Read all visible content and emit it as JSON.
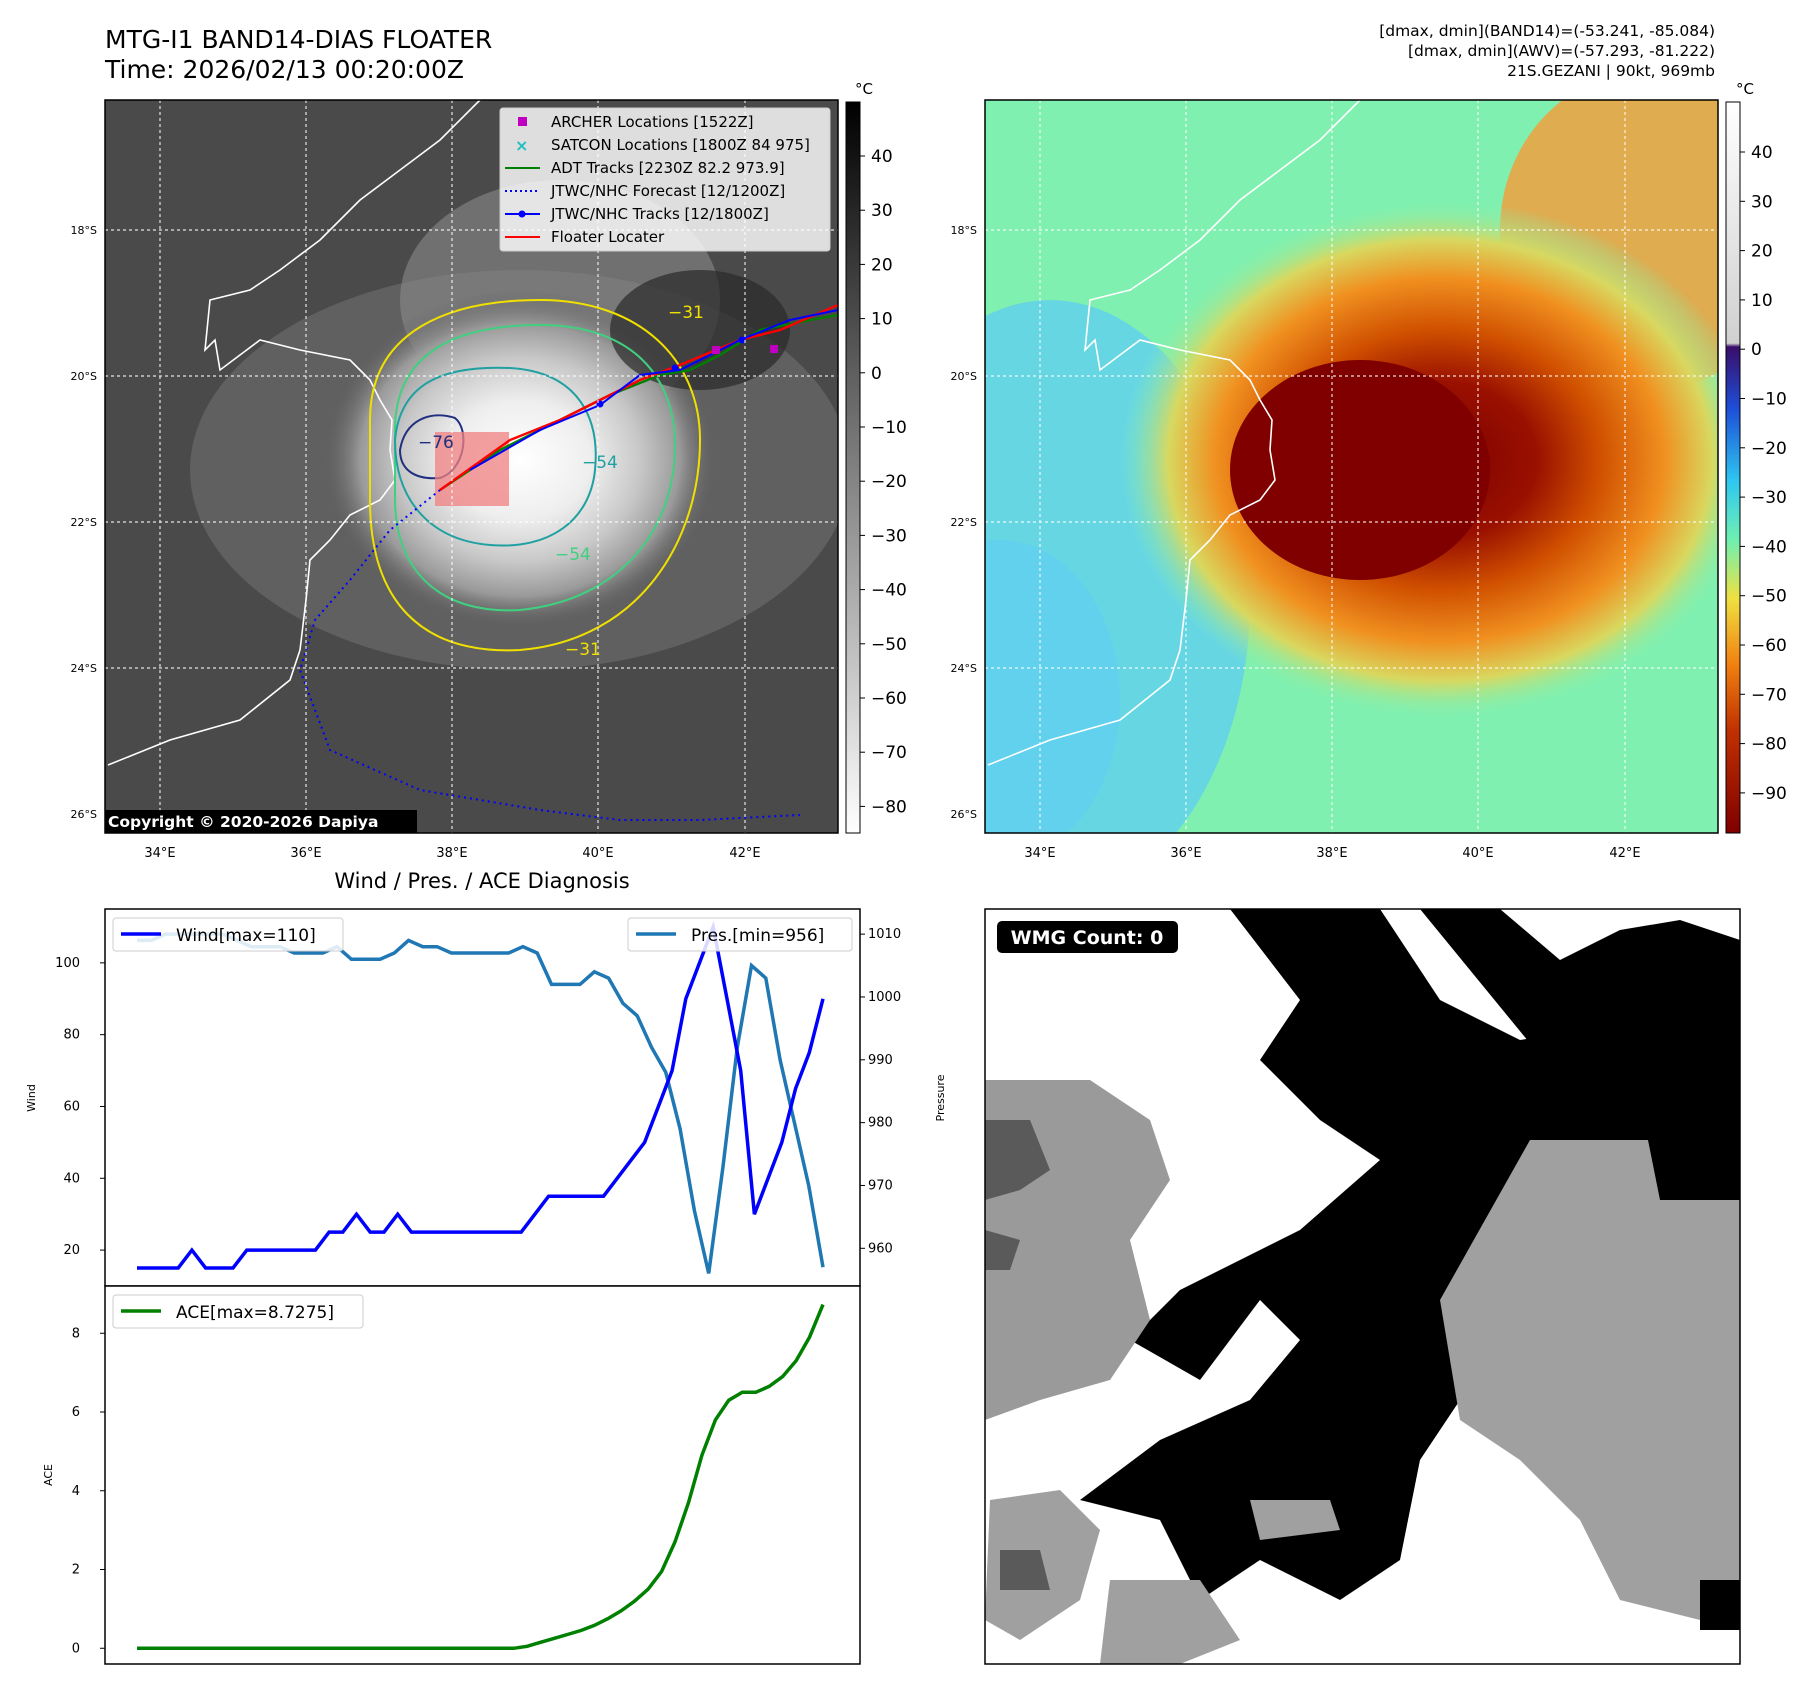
{
  "header": {
    "title_line1": "MTG-I1 BAND14-DIAS FLOATER",
    "title_line2": "Time: 2026/02/13 00:20:00Z",
    "info_line1": "[dmax, dmin](BAND14)=(-53.241, -85.084)",
    "info_line2": "[dmax, dmin](AWV)=(-57.293, -81.222)",
    "info_line3": "21S.GEZANI | 90kt, 969mb"
  },
  "map_common": {
    "lat_labels": [
      "18°S",
      "20°S",
      "22°S",
      "24°S",
      "26°S"
    ],
    "lon_labels": [
      "34°E",
      "36°E",
      "38°E",
      "40°E",
      "42°E"
    ]
  },
  "ir_panel": {
    "colorbar_unit": "°C",
    "colorbar_ticks": [
      "40",
      "30",
      "20",
      "10",
      "0",
      "−10",
      "−20",
      "−30",
      "−40",
      "−50",
      "−60",
      "−70",
      "−80"
    ],
    "copyright": "Copyright © 2020-2026 Dapiya",
    "contour_labels": [
      "−76",
      "−54",
      "−54",
      "−31",
      "−31"
    ],
    "legend": [
      {
        "label": "ARCHER Locations [1522Z]",
        "color": "#c000c0",
        "marker": "square"
      },
      {
        "label": "SATCON Locations [1800Z 84 975]",
        "color": "#20c0c0",
        "marker": "x"
      },
      {
        "label": "ADT Tracks [2230Z 82.2 973.9]",
        "color": "#008000",
        "marker": "line"
      },
      {
        "label": "JTWC/NHC Forecast [12/1200Z]",
        "color": "#0000ff",
        "marker": "dotted"
      },
      {
        "label": "JTWC/NHC Tracks [12/1800Z]",
        "color": "#0000ff",
        "marker": "line-dot"
      },
      {
        "label": "Floater Locater",
        "color": "#ff0000",
        "marker": "line"
      }
    ]
  },
  "awv_panel": {
    "colorbar_unit": "°C",
    "colorbar_ticks": [
      "40",
      "30",
      "20",
      "10",
      "0",
      "−10",
      "−20",
      "−30",
      "−40",
      "−50",
      "−60",
      "−70",
      "−80",
      "−90"
    ]
  },
  "chart_data": [
    {
      "type": "line",
      "title": "Wind / Pres. / ACE Diagnosis",
      "ylabel": "Wind",
      "y2label": "Pressure",
      "ylim": [
        10,
        115
      ],
      "y2lim": [
        954,
        1014
      ],
      "series": [
        {
          "name": "Wind[max=110]",
          "color": "#0000ff",
          "axis": "left",
          "values": [
            15,
            15,
            15,
            15,
            20,
            15,
            15,
            15,
            20,
            20,
            20,
            20,
            20,
            20,
            25,
            25,
            30,
            25,
            25,
            30,
            25,
            25,
            25,
            25,
            25,
            25,
            25,
            25,
            25,
            30,
            35,
            35,
            35,
            35,
            35,
            40,
            45,
            50,
            60,
            70,
            90,
            100,
            110,
            90,
            70,
            30,
            40,
            50,
            65,
            75,
            90
          ]
        },
        {
          "name": "Pres.[min=956]",
          "color": "#1f77b4",
          "axis": "right",
          "values": [
            1009,
            1009,
            1010,
            1010,
            1010,
            1010,
            1010,
            1009,
            1008,
            1008,
            1008,
            1007,
            1007,
            1007,
            1008,
            1006,
            1006,
            1006,
            1007,
            1009,
            1008,
            1008,
            1007,
            1007,
            1007,
            1007,
            1007,
            1008,
            1007,
            1002,
            1002,
            1002,
            1004,
            1003,
            999,
            997,
            992,
            988,
            979,
            966,
            956,
            973,
            992,
            1005,
            1003,
            990,
            980,
            970,
            957
          ]
        }
      ]
    },
    {
      "type": "line",
      "ylabel": "ACE",
      "ylim": [
        -0.4,
        9.2
      ],
      "series": [
        {
          "name": "ACE[max=8.7275]",
          "color": "#008000",
          "values": [
            0,
            0,
            0,
            0,
            0,
            0,
            0,
            0,
            0,
            0,
            0,
            0,
            0,
            0,
            0,
            0,
            0,
            0,
            0,
            0,
            0,
            0,
            0,
            0,
            0,
            0,
            0,
            0,
            0,
            0.05,
            0.15,
            0.25,
            0.35,
            0.45,
            0.58,
            0.75,
            0.95,
            1.2,
            1.5,
            1.95,
            2.7,
            3.7,
            4.9,
            5.8,
            6.3,
            6.5,
            6.5,
            6.65,
            6.9,
            7.3,
            7.9,
            8.7275
          ]
        }
      ]
    }
  ],
  "wmg_panel": {
    "badge": "WMG Count: 0"
  }
}
